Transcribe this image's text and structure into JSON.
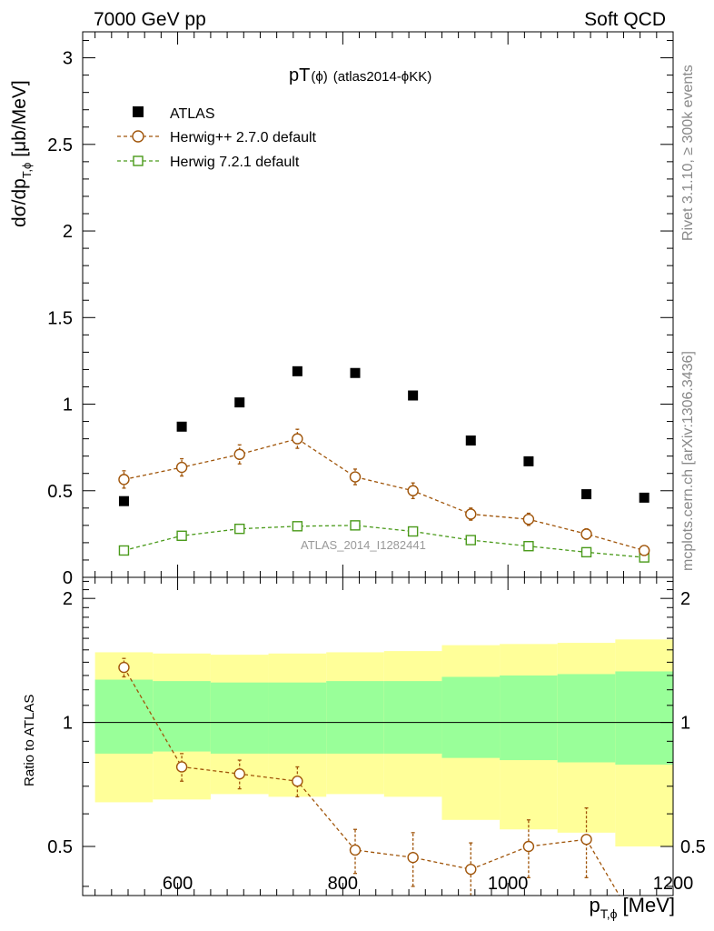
{
  "header": {
    "left": "7000 GeV pp",
    "right": "Soft QCD"
  },
  "side_labels": {
    "rivet": "Rivet 3.1.10, ≥ 300k events",
    "mcplots": "mcplots.cern.ch [arXiv:1306.3436]"
  },
  "colors": {
    "atlas": "#000000",
    "herwigpp": "#a0550a",
    "herwig7": "#4a9a1a",
    "band_inner": "#99ff99",
    "band_outer": "#ffff99"
  },
  "chart_data": [
    {
      "type": "scatter",
      "title_main": "pT",
      "title_phi": "(ϕ)",
      "title_tag": "(atlas2014-ϕKK)",
      "ylabel": "dσ/dp",
      "ylabel_sub": "T,ϕ",
      "ylabel_unit": "[μb/MeV]",
      "xlabel": "p",
      "xlabel_sub": "T,ϕ",
      "xlabel_unit": "[MeV]",
      "watermark": "ATLAS_2014_I1282441",
      "xlim": [
        485,
        1200
      ],
      "ylim": [
        0,
        3.15
      ],
      "yticks": [
        "0",
        "0.5",
        "1",
        "1.5",
        "2",
        "2.5",
        "3"
      ],
      "ytick_values": [
        0,
        0.5,
        1,
        1.5,
        2,
        2.5,
        3
      ],
      "legend": [
        "ATLAS",
        "Herwig++ 2.7.0 default",
        "Herwig 7.2.1 default"
      ],
      "x": [
        535,
        605,
        675,
        745,
        815,
        885,
        955,
        1025,
        1095,
        1165
      ],
      "series": [
        {
          "name": "ATLAS",
          "values": [
            0.44,
            0.87,
            1.01,
            1.19,
            1.18,
            1.05,
            0.79,
            0.67,
            0.48,
            0.46
          ]
        },
        {
          "name": "Herwig++ 2.7.0 default",
          "values": [
            0.565,
            0.635,
            0.71,
            0.8,
            0.58,
            0.5,
            0.365,
            0.335,
            0.25,
            0.155
          ],
          "errors": [
            0.05,
            0.05,
            0.055,
            0.055,
            0.045,
            0.045,
            0.035,
            0.035,
            0.03,
            0.02
          ]
        },
        {
          "name": "Herwig 7.2.1 default",
          "values": [
            0.155,
            0.24,
            0.28,
            0.295,
            0.3,
            0.265,
            0.215,
            0.18,
            0.145,
            0.115
          ]
        }
      ]
    },
    {
      "type": "line",
      "ylabel": "Ratio to ATLAS",
      "xlim": [
        485,
        1200
      ],
      "ylim": [
        0.38,
        2.25
      ],
      "xticks": [
        "600",
        "800",
        "1000",
        "1200"
      ],
      "xtick_values": [
        600,
        800,
        1000,
        1200
      ],
      "yticks": [
        "0.5",
        "1",
        "2"
      ],
      "ytick_values": [
        0.5,
        1,
        2
      ],
      "bands": {
        "edges": [
          500,
          570,
          640,
          710,
          780,
          850,
          920,
          990,
          1060,
          1130,
          1200
        ],
        "outer_low": [
          0.64,
          0.65,
          0.67,
          0.66,
          0.67,
          0.66,
          0.58,
          0.55,
          0.54,
          0.5
        ],
        "outer_high": [
          1.48,
          1.47,
          1.46,
          1.47,
          1.48,
          1.49,
          1.54,
          1.55,
          1.56,
          1.59
        ],
        "inner_low": [
          0.84,
          0.85,
          0.84,
          0.84,
          0.84,
          0.84,
          0.82,
          0.81,
          0.8,
          0.79
        ],
        "inner_high": [
          1.27,
          1.26,
          1.25,
          1.25,
          1.26,
          1.26,
          1.29,
          1.3,
          1.31,
          1.33
        ]
      },
      "x": [
        535,
        605,
        675,
        745,
        815,
        885,
        955,
        1025,
        1095,
        1165
      ],
      "series": [
        {
          "name": "Herwig++ 2.7.0 default",
          "values": [
            1.36,
            0.78,
            0.75,
            0.72,
            0.49,
            0.47,
            0.44,
            0.5,
            0.52,
            0.3
          ],
          "errors": [
            0.07,
            0.06,
            0.06,
            0.06,
            0.06,
            0.07,
            0.07,
            0.08,
            0.1,
            0.1
          ]
        }
      ]
    }
  ]
}
